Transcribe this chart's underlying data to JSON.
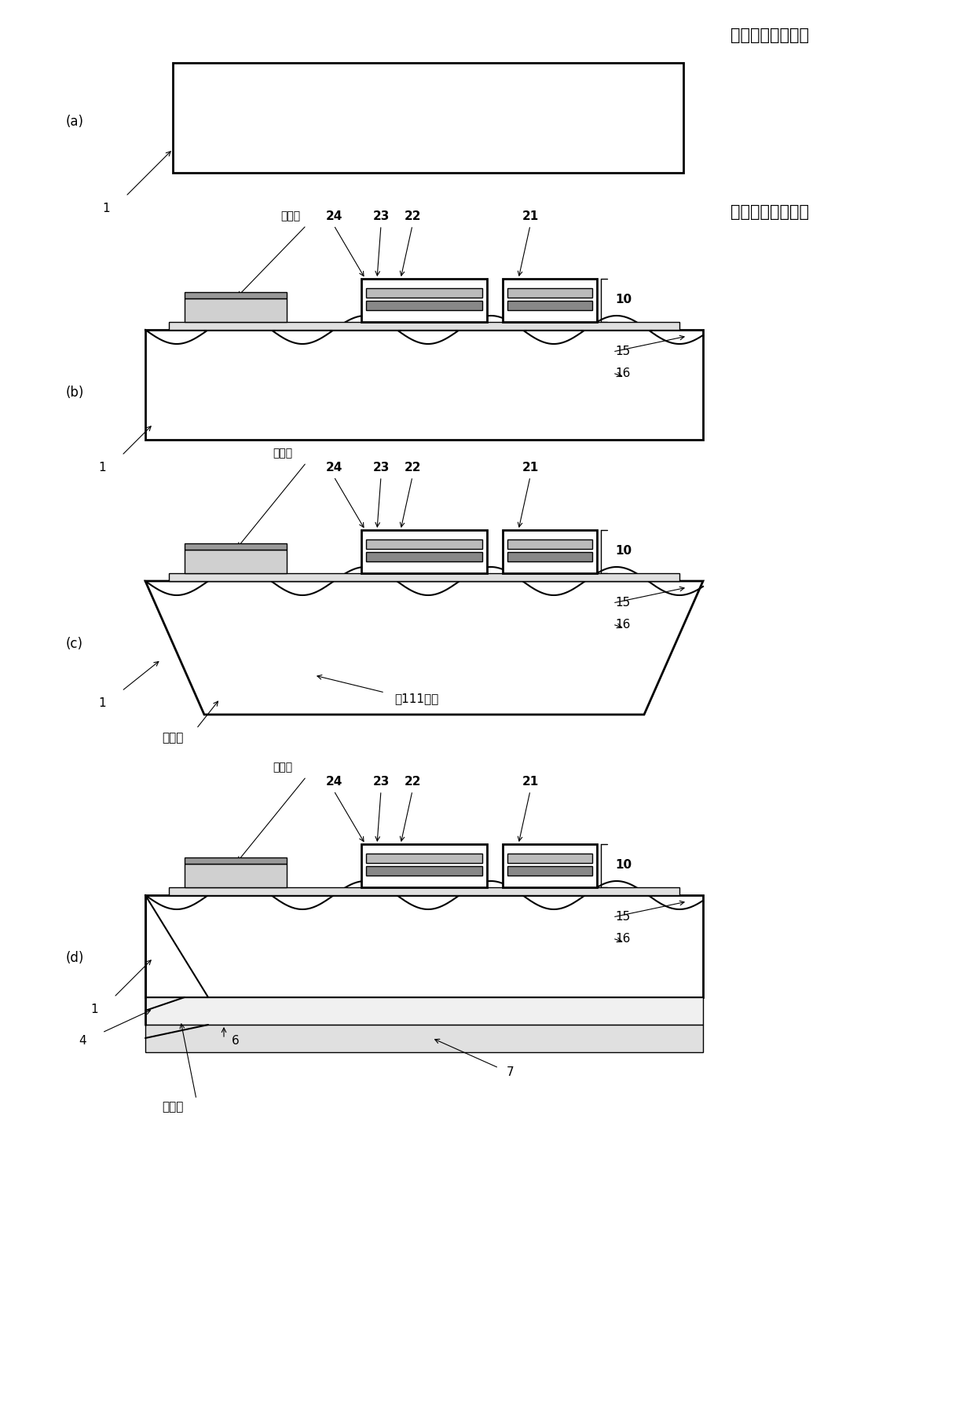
{
  "bg_color": "#ffffff",
  "line_color": "#000000",
  "title_top": "发射极侧（表面）",
  "title_bottom": "集电极侧（背面）",
  "label_a": "(a)",
  "label_b": "(b)",
  "label_c": "(c)",
  "label_d": "(d)",
  "n1": "1",
  "n4": "4",
  "n6": "6",
  "n7": "7",
  "n10": "10",
  "n15": "15",
  "n16": "16",
  "n21": "21",
  "n22": "22",
  "n23": "23",
  "n24": "24",
  "jyuenmaku": "絶縁膜",
  "suikei": "錐形沟",
  "men111": "（111）面",
  "fs_title": 15,
  "fs_label": 12,
  "fs_num": 11,
  "fs_small": 10
}
